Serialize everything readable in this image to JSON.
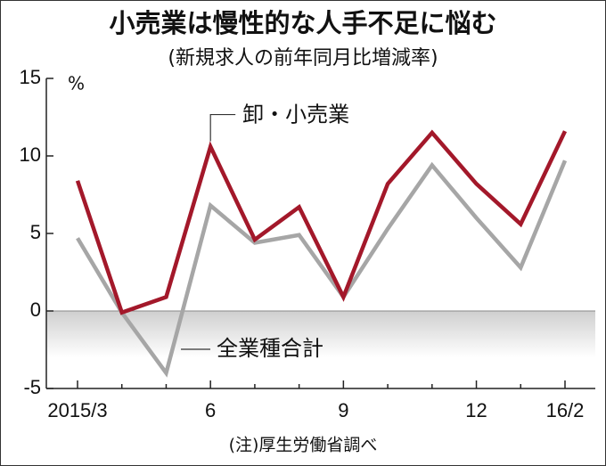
{
  "chart_data": {
    "type": "line",
    "title": "小売業は慢性的な人手不足に悩む",
    "subtitle": "(新規求人の前年同月比増減率)",
    "y_unit": "%",
    "note": "(注)厚生労働省調べ",
    "categories": [
      "2015/3",
      null,
      null,
      "6",
      null,
      null,
      "9",
      null,
      null,
      "12",
      null,
      "16/2"
    ],
    "series": [
      {
        "name": "卸・小売業",
        "color": "#a3182a",
        "values": [
          8.4,
          -0.1,
          0.9,
          10.6,
          4.6,
          6.7,
          0.9,
          8.2,
          11.5,
          8.2,
          5.6,
          11.6
        ]
      },
      {
        "name": "全業種合計",
        "color": "#a6a6a6",
        "values": [
          4.7,
          -0.1,
          -4.0,
          6.8,
          4.4,
          4.9,
          0.9,
          5.3,
          9.4,
          6.0,
          2.8,
          9.7
        ]
      }
    ],
    "ylim": [
      -5,
      15
    ],
    "yticks": [
      15,
      10,
      5,
      0,
      -5
    ]
  }
}
